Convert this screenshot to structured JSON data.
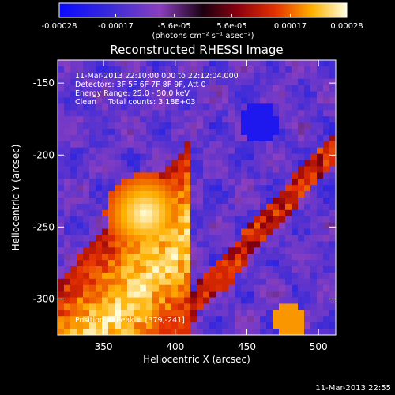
{
  "chart_data": {
    "type": "heatmap",
    "title": "Reconstructed RHESSI Image",
    "xlabel": "Heliocentric X (arcsec)",
    "ylabel": "Heliocentric Y (arcsec)",
    "xlim": [
      318,
      512
    ],
    "ylim": [
      -325,
      -134
    ],
    "xticks": [
      350,
      400,
      450,
      500
    ],
    "yticks": [
      -150,
      -200,
      -250,
      -300
    ],
    "colorbar": {
      "range": [
        -0.00028,
        0.00028
      ],
      "ticks": [
        "-0.00028",
        "-0.00017",
        "-5.6e-05",
        "5.6e-05",
        "0.00017",
        "0.00028"
      ],
      "label": "(photons cm⁻² s⁻¹ asec⁻²)"
    },
    "annotations": [
      "11-Mar-2013 22:10:00.000 to 22:12:04.000",
      "Detectors: 3F 5F 6F 7F 8F 9F, Att 0",
      "Energy Range: 25.0 - 50.0 keV",
      "Clean     Total counts: 3.18E+03"
    ],
    "peak_label": "Position of Peak = [379,-241]",
    "peak": [
      379,
      -241
    ],
    "footer": "11-Mar-2013 22:55",
    "grid": false
  }
}
